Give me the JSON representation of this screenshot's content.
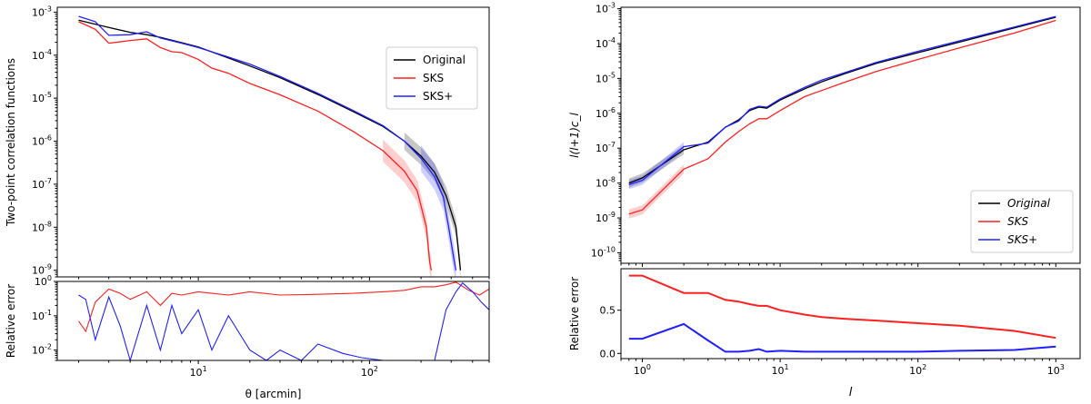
{
  "chart_data": [
    {
      "type": "line",
      "title": "",
      "xlabel": "θ [arcmin]",
      "ylabel": "Two-point correlation functions",
      "xscale": "log",
      "yscale": "log",
      "xlim": [
        1.5,
        500
      ],
      "ylim": [
        7e-10,
        0.0013
      ],
      "x_ticks": [
        "10^1",
        "10^2"
      ],
      "y_ticks": [
        "10^-9",
        "10^-8",
        "10^-7",
        "10^-6",
        "10^-5",
        "10^-4",
        "10^-3"
      ],
      "legend": {
        "position": "top-right",
        "entries": [
          "Original",
          "SKS",
          "SKS+"
        ]
      },
      "series": [
        {
          "name": "Original",
          "color": "#000000",
          "x": [
            2,
            3,
            4,
            5,
            6,
            8,
            10,
            15,
            20,
            30,
            50,
            80,
            120,
            160,
            200,
            240,
            280,
            320,
            340
          ],
          "y": [
            0.00065,
            0.00044,
            0.00034,
            0.0003,
            0.00026,
            0.000195,
            0.000155,
            8.6e-05,
            5.6e-05,
            3e-05,
            1.22e-05,
            4.9e-06,
            2.2e-06,
            1e-06,
            4.5e-07,
            1.9e-07,
            5.5e-08,
            1e-08,
            1e-09
          ]
        },
        {
          "name": "SKS",
          "color": "#ff2020",
          "x": [
            2,
            2.5,
            3,
            4,
            5,
            6,
            7,
            8,
            10,
            12,
            15,
            20,
            30,
            50,
            80,
            120,
            160,
            190,
            215,
            225,
            230
          ],
          "y": [
            0.0006,
            0.0004,
            0.00019,
            0.00022,
            0.00024,
            0.00015,
            0.00012,
            0.000115,
            8e-05,
            5e-05,
            3.8e-05,
            2.2e-05,
            1.2e-05,
            5e-06,
            1.7e-06,
            6e-07,
            2e-07,
            7e-08,
            1e-08,
            1.5e-09,
            1e-09
          ]
        },
        {
          "name": "SKS+",
          "color": "#2020ff",
          "x": [
            2,
            2.5,
            3,
            4,
            5,
            6,
            8,
            10,
            15,
            20,
            30,
            50,
            80,
            120,
            160,
            200,
            240,
            270,
            290,
            310,
            320
          ],
          "y": [
            0.0008,
            0.0006,
            0.00029,
            0.0003,
            0.00035,
            0.00025,
            0.00019,
            0.00015,
            9e-05,
            6.2e-05,
            3.2e-05,
            1.3e-05,
            5.2e-06,
            2.3e-06,
            1e-06,
            4e-07,
            1.5e-07,
            5e-08,
            1e-08,
            2e-09,
            1e-09
          ]
        }
      ],
      "error_panel": {
        "ylabel": "Relative error",
        "yscale": "log",
        "ylim": [
          0.005,
          1.0
        ],
        "y_ticks": [
          "10^-2",
          "10^-1",
          "10^0"
        ],
        "series": [
          {
            "name": "SKS",
            "color": "#ff2020",
            "x": [
              2,
              2.2,
              2.5,
              3,
              3.5,
              4,
              5,
              6,
              7,
              8,
              10,
              12,
              15,
              20,
              30,
              50,
              80,
              120,
              160,
              200,
              240,
              280,
              320,
              380,
              440,
              500
            ],
            "y": [
              0.07,
              0.035,
              0.25,
              0.6,
              0.45,
              0.3,
              0.5,
              0.2,
              0.45,
              0.4,
              0.5,
              0.45,
              0.4,
              0.5,
              0.4,
              0.42,
              0.45,
              0.5,
              0.55,
              0.7,
              0.7,
              0.8,
              0.95,
              0.55,
              0.4,
              0.6
            ]
          },
          {
            "name": "SKS+",
            "color": "#2020ff",
            "x": [
              2,
              2.2,
              2.5,
              3,
              3.5,
              4,
              5,
              6,
              7,
              8,
              10,
              12,
              15,
              20,
              25,
              30,
              40,
              50,
              70,
              90,
              120,
              160,
              200,
              240,
              280,
              320,
              350,
              400,
              450,
              500
            ],
            "y": [
              0.4,
              0.3,
              0.02,
              0.35,
              0.05,
              0.005,
              0.2,
              0.01,
              0.2,
              0.03,
              0.15,
              0.01,
              0.1,
              0.01,
              0.005,
              0.01,
              0.005,
              0.015,
              0.008,
              0.006,
              0.005,
              0.005,
              0.005,
              0.005,
              0.15,
              0.5,
              0.9,
              0.5,
              0.25,
              0.15
            ]
          }
        ]
      }
    },
    {
      "type": "line",
      "title": "",
      "xlabel": "l",
      "ylabel": "l(l+1)c_l",
      "xscale": "log",
      "yscale": "log",
      "xlim": [
        0.7,
        1500
      ],
      "ylim": [
        5e-11,
        0.0011
      ],
      "x_ticks": [
        "10^0",
        "10^1",
        "10^2",
        "10^3"
      ],
      "y_ticks": [
        "10^-10",
        "10^-9",
        "10^-8",
        "10^-7",
        "10^-6",
        "10^-5",
        "10^-4",
        "10^-3"
      ],
      "legend": {
        "position": "bottom-right",
        "entries": [
          "Original",
          "SKS",
          "SKS+"
        ]
      },
      "series": [
        {
          "name": "Original",
          "color": "#000000",
          "x": [
            0.8,
            1,
            2,
            3,
            4,
            5,
            6,
            7,
            8,
            10,
            15,
            20,
            30,
            50,
            100,
            200,
            500,
            1000
          ],
          "y": [
            1e-08,
            1.4e-08,
            9e-08,
            1.5e-07,
            4e-07,
            6.5e-07,
            1.2e-06,
            1.5e-06,
            1.4e-06,
            2.4e-06,
            5e-06,
            8e-06,
            1.4e-05,
            2.7e-05,
            5.5e-05,
            0.00011,
            0.00028,
            0.00057
          ]
        },
        {
          "name": "SKS",
          "color": "#ff2020",
          "x": [
            0.8,
            1,
            2,
            3,
            4,
            5,
            6,
            7,
            8,
            10,
            15,
            20,
            30,
            50,
            100,
            200,
            500,
            1000
          ],
          "y": [
            1.3e-09,
            1.7e-09,
            2.5e-08,
            5e-08,
            1.5e-07,
            3e-07,
            5e-07,
            7e-07,
            7e-07,
            1.2e-06,
            3e-06,
            4.5e-06,
            8e-06,
            1.6e-05,
            3.5e-05,
            7.5e-05,
            0.0002,
            0.00046
          ]
        },
        {
          "name": "SKS+",
          "color": "#2020ff",
          "x": [
            0.8,
            1,
            2,
            3,
            4,
            5,
            6,
            7,
            8,
            10,
            15,
            20,
            30,
            50,
            100,
            200,
            500,
            1000
          ],
          "y": [
            9e-09,
            1.2e-08,
            1.1e-07,
            1.4e-07,
            4e-07,
            6e-07,
            1.3e-06,
            1.6e-06,
            1.5e-06,
            2.6e-06,
            5.5e-06,
            9e-06,
            1.5e-05,
            2.9e-05,
            6e-05,
            0.00012,
            0.0003,
            0.0006
          ]
        }
      ],
      "error_panel": {
        "ylabel": "Relative error",
        "yscale": "linear",
        "ylim": [
          -0.06,
          0.98
        ],
        "y_ticks": [
          "0.0",
          "0.5"
        ],
        "series": [
          {
            "name": "SKS",
            "color": "#ff2020",
            "x": [
              0.8,
              1,
              2,
              3,
              4,
              5,
              6,
              7,
              8,
              10,
              15,
              20,
              30,
              50,
              100,
              200,
              500,
              1000
            ],
            "y": [
              0.9,
              0.9,
              0.7,
              0.7,
              0.62,
              0.6,
              0.57,
              0.55,
              0.55,
              0.5,
              0.45,
              0.42,
              0.4,
              0.38,
              0.35,
              0.32,
              0.26,
              0.18
            ]
          },
          {
            "name": "SKS+",
            "color": "#2020ff",
            "x": [
              0.8,
              1,
              2,
              3,
              4,
              5,
              6,
              7,
              8,
              10,
              15,
              20,
              30,
              50,
              100,
              200,
              500,
              1000
            ],
            "y": [
              0.17,
              0.17,
              0.34,
              0.15,
              0.02,
              0.02,
              0.03,
              0.05,
              0.02,
              0.03,
              0.02,
              0.02,
              0.02,
              0.02,
              0.02,
              0.03,
              0.04,
              0.08
            ]
          }
        ]
      }
    }
  ]
}
